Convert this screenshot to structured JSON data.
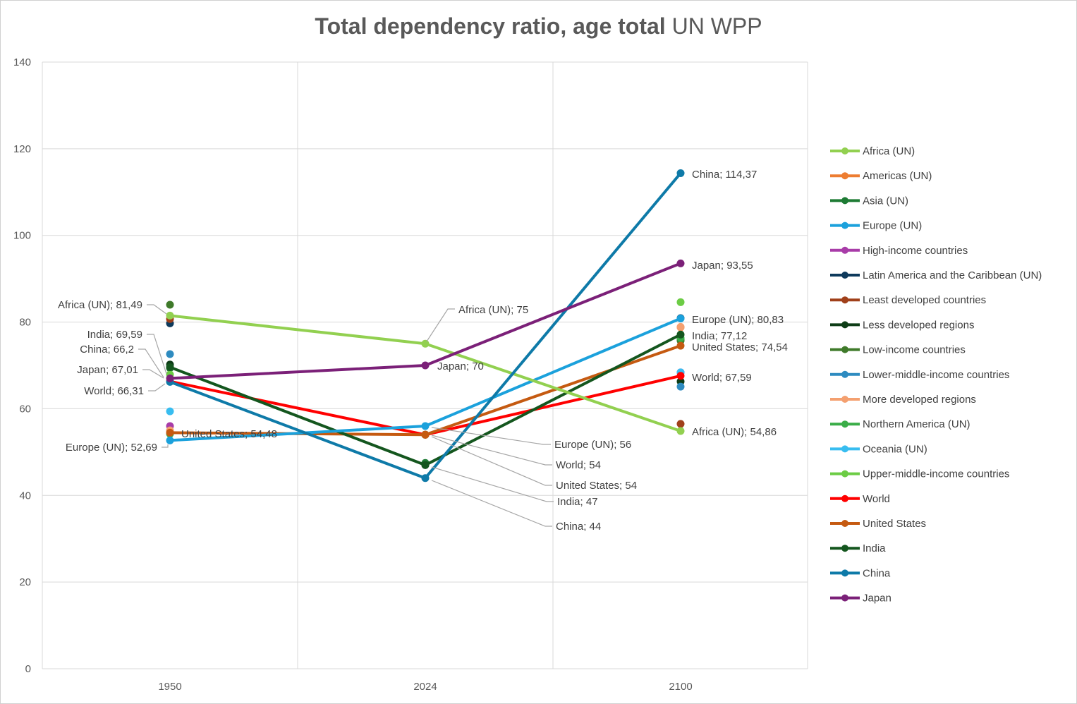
{
  "chart_data": {
    "type": "line",
    "title": "Total dependency ratio, age total",
    "title_source": "UN WPP",
    "x": [
      "1950",
      "2024",
      "2100"
    ],
    "ylim": [
      0,
      140
    ],
    "yticks": [
      "0",
      "20",
      "40",
      "60",
      "80",
      "100",
      "120",
      "140"
    ],
    "grid": true,
    "legend_position": "right",
    "series": [
      {
        "name": "Africa (UN)",
        "color": "#92d050",
        "values": [
          81.49,
          75,
          54.86
        ],
        "line": true
      },
      {
        "name": "Americas (UN)",
        "color": "#ed7d31",
        "values": [
          54.5,
          54,
          78.8
        ],
        "line": false
      },
      {
        "name": "Asia (UN)",
        "color": "#1e7b34",
        "values": [
          69.4,
          47.5,
          75.9
        ],
        "line": false
      },
      {
        "name": "Europe (UN)",
        "color": "#1ba1dc",
        "values": [
          52.69,
          56,
          80.83
        ],
        "line": true
      },
      {
        "name": "High-income countries",
        "color": "#a83ca8",
        "values": [
          56.0,
          54,
          68.4
        ],
        "line": false
      },
      {
        "name": "Latin America and the Caribbean (UN)",
        "color": "#0e3a5c",
        "values": [
          79.7,
          54,
          80.9
        ],
        "line": false
      },
      {
        "name": "Least developed countries",
        "color": "#a0401a",
        "values": [
          80.7,
          54,
          56.5
        ],
        "line": false
      },
      {
        "name": "Less developed regions",
        "color": "#0e3d17",
        "values": [
          70.2,
          47,
          66.3
        ],
        "line": false
      },
      {
        "name": "Low-income countries",
        "color": "#3f7a2a",
        "values": [
          84.0,
          54,
          75.7
        ],
        "line": false
      },
      {
        "name": "Lower-middle-income countries",
        "color": "#2e8bc0",
        "values": [
          72.6,
          54,
          65.1
        ],
        "line": false
      },
      {
        "name": "More developed regions",
        "color": "#f4a070",
        "values": [
          55.0,
          54,
          78.9
        ],
        "line": false
      },
      {
        "name": "Northern America (UN)",
        "color": "#3aad48",
        "values": [
          54.2,
          54,
          76.3
        ],
        "line": false
      },
      {
        "name": "Oceania (UN)",
        "color": "#38bdf0",
        "values": [
          59.4,
          54,
          68.4
        ],
        "line": false
      },
      {
        "name": "Upper-middle-income countries",
        "color": "#6ccc45",
        "values": [
          67.9,
          54,
          84.6
        ],
        "line": false
      },
      {
        "name": "World",
        "color": "#ff0000",
        "values": [
          66.31,
          54,
          67.59
        ],
        "line": true
      },
      {
        "name": "United States",
        "color": "#c55a11",
        "values": [
          54.48,
          54,
          74.54
        ],
        "line": true
      },
      {
        "name": "India",
        "color": "#14561e",
        "values": [
          69.59,
          47,
          77.12
        ],
        "line": true
      },
      {
        "name": "China",
        "color": "#0e7aa8",
        "values": [
          66.2,
          44,
          114.37
        ],
        "line": true
      },
      {
        "name": "Japan",
        "color": "#7b2078",
        "values": [
          67.01,
          70,
          93.55
        ],
        "line": true
      }
    ],
    "annotations": [
      {
        "text": "Africa (UN); 81,49",
        "series": "Africa (UN)",
        "x": "1950",
        "y": 81.49
      },
      {
        "text": "India; 69,59",
        "series": "India",
        "x": "1950",
        "y": 69.59
      },
      {
        "text": "China; 66,2",
        "series": "China",
        "x": "1950",
        "y": 66.2
      },
      {
        "text": "Japan; 67,01",
        "series": "Japan",
        "x": "1950",
        "y": 67.01
      },
      {
        "text": "World; 66,31",
        "series": "World",
        "x": "1950",
        "y": 66.31
      },
      {
        "text": "United States; 54,48",
        "series": "United States",
        "x": "1950",
        "y": 54.48
      },
      {
        "text": "Europe (UN); 52,69",
        "series": "Europe (UN)",
        "x": "1950",
        "y": 52.69
      },
      {
        "text": "Africa (UN); 75",
        "series": "Africa (UN)",
        "x": "2024",
        "y": 75
      },
      {
        "text": "Japan; 70",
        "series": "Japan",
        "x": "2024",
        "y": 70
      },
      {
        "text": "Europe (UN); 56",
        "series": "Europe (UN)",
        "x": "2024",
        "y": 56
      },
      {
        "text": "World; 54",
        "series": "World",
        "x": "2024",
        "y": 54
      },
      {
        "text": "United States; 54",
        "series": "United States",
        "x": "2024",
        "y": 54
      },
      {
        "text": "India; 47",
        "series": "India",
        "x": "2024",
        "y": 47
      },
      {
        "text": "China; 44",
        "series": "China",
        "x": "2024",
        "y": 44
      },
      {
        "text": "China; 114,37",
        "series": "China",
        "x": "2100",
        "y": 114.37
      },
      {
        "text": "Japan; 93,55",
        "series": "Japan",
        "x": "2100",
        "y": 93.55
      },
      {
        "text": "Europe (UN); 80,83",
        "series": "Europe (UN)",
        "x": "2100",
        "y": 80.83
      },
      {
        "text": "India; 77,12",
        "series": "India",
        "x": "2100",
        "y": 77.12
      },
      {
        "text": "United States; 74,54",
        "series": "United States",
        "x": "2100",
        "y": 74.54
      },
      {
        "text": "World; 67,59",
        "series": "World",
        "x": "2100",
        "y": 67.59
      },
      {
        "text": "Africa (UN); 54,86",
        "series": "Africa (UN)",
        "x": "2100",
        "y": 54.86
      }
    ]
  }
}
